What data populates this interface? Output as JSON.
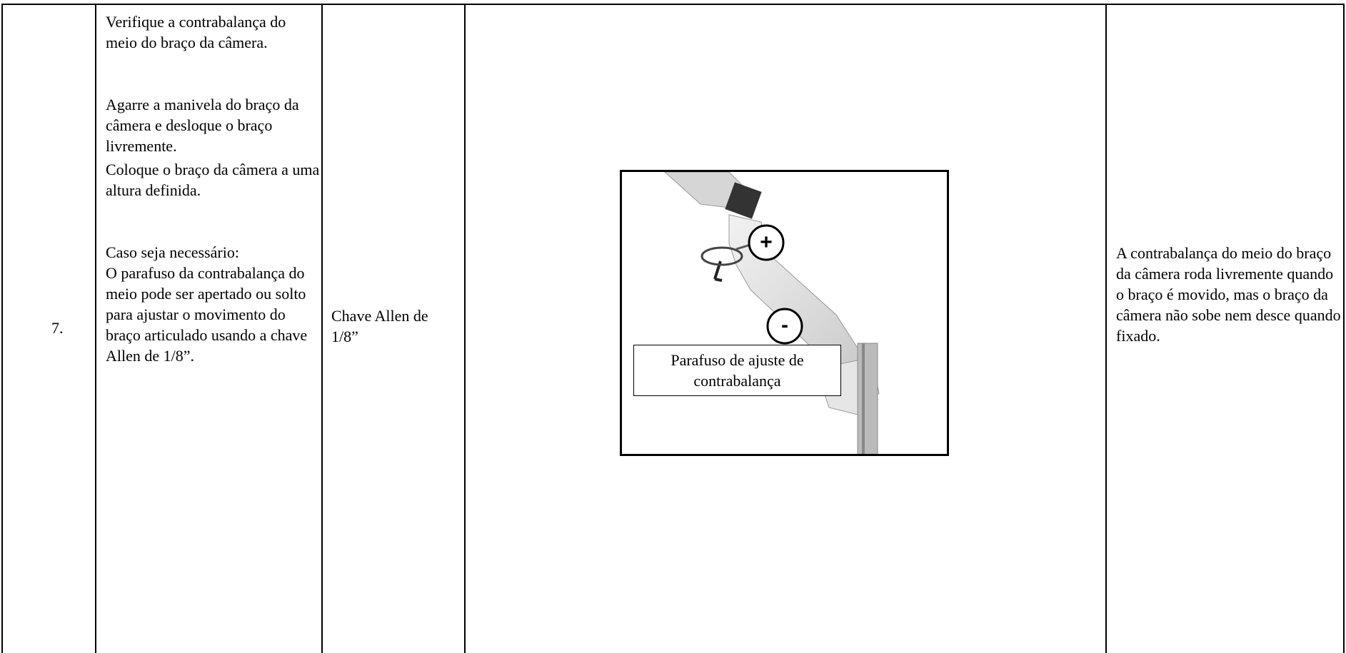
{
  "table": {
    "rows": [
      [
        "7.",
        {
          "paragraphs": [
            "Verifique a contrabalança do meio do braço da câmera.",
            "Agarre a manivela do braço da câmera e desloque o braço livremente.",
            "Coloque o braço da câmera a uma altura definida.",
            "Caso seja necessário:",
            "O parafuso da contrabalança do meio pode ser apertado ou solto para ajustar o movimento do braço articulado usando a chave Allen de 1/8”."
          ]
        },
        "Chave Allen de 1/8”",
        {
          "callout": "Parafuso de ajuste de contrabalança",
          "plus": "+",
          "minus": "-"
        },
        "A contrabalança do meio do braço da câmera roda livremente quando o braço é movido, mas o braço da câmera não sobe nem desce quando fixado."
      ]
    ]
  }
}
